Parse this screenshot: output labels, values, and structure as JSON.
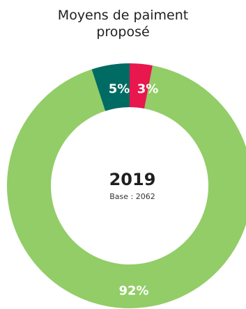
{
  "chart_data": {
    "type": "pie",
    "title_line1": "Moyens de paiment",
    "title_line2": "proposé",
    "center_label": "2019",
    "center_sublabel": "Base : 2062",
    "slices": [
      {
        "label": "3%",
        "value": 3,
        "color": "#e8174e"
      },
      {
        "label": "92%",
        "value": 92,
        "color": "#92cd67"
      },
      {
        "label": "5%",
        "value": 5,
        "color": "#006b62"
      }
    ]
  }
}
